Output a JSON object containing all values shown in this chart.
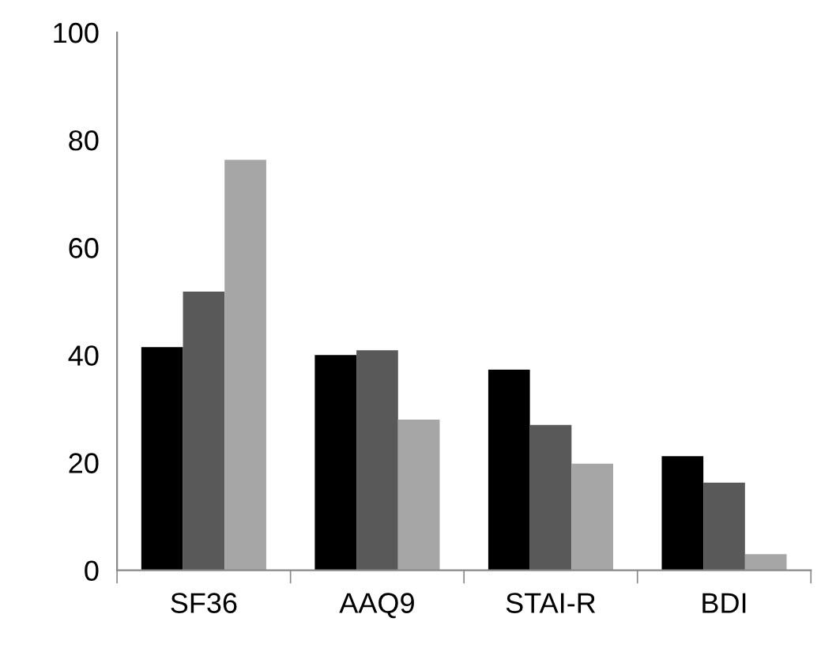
{
  "chart_data": {
    "type": "bar",
    "categories": [
      "SF36",
      "AAQ9",
      "STAI-R",
      "BDI"
    ],
    "series": [
      {
        "color": "#000000",
        "values": [
          41.5,
          40,
          37.3,
          21.2
        ]
      },
      {
        "color": "#595959",
        "values": [
          51.8,
          40.9,
          27,
          16.3
        ]
      },
      {
        "color": "#a6a6a6",
        "values": [
          76.3,
          28,
          19.8,
          3
        ]
      }
    ],
    "ylim": [
      0,
      100
    ],
    "yticks": [
      0,
      20,
      40,
      60,
      80,
      100
    ],
    "grid": false,
    "legend": false
  }
}
